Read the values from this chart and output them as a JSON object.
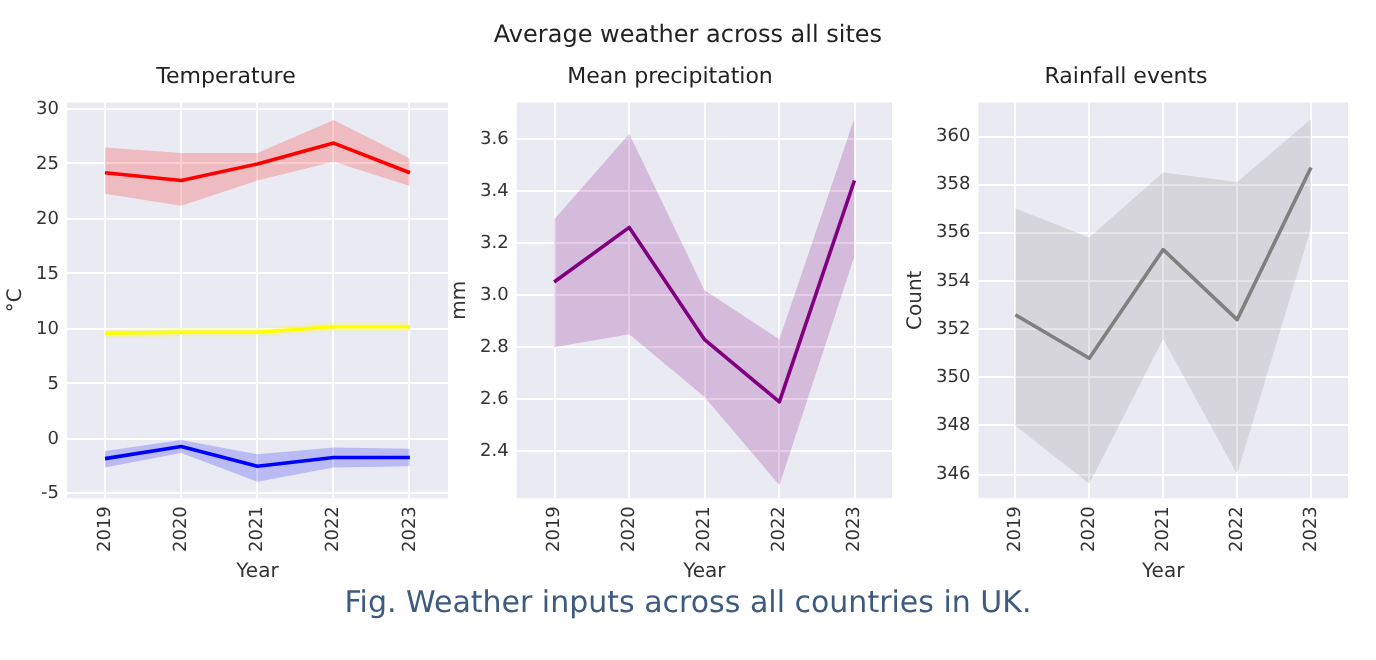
{
  "chart_data": [
    {
      "type": "line",
      "title": "Temperature",
      "xlabel": "Year",
      "ylabel": "°C",
      "categories": [
        "2019",
        "2020",
        "2021",
        "2022",
        "2023"
      ],
      "ylim": [
        -5.4,
        30.6
      ],
      "yticks": [
        -5,
        0,
        5,
        10,
        15,
        20,
        25,
        30
      ],
      "grid": true,
      "legend": false,
      "marker": "none",
      "line_style": "solid",
      "annotations": [
        "Average weather across all sites",
        "Fig. Weather inputs across all countries in UK."
      ],
      "series": [
        {
          "color": "#ff0000",
          "values": [
            24.2,
            23.5,
            25.0,
            26.9,
            24.2
          ],
          "lower": [
            22.3,
            21.2,
            23.5,
            25.2,
            23.0
          ],
          "upper": [
            26.5,
            26.0,
            26.0,
            29.0,
            25.5
          ]
        },
        {
          "color": "#ffff00",
          "values": [
            9.6,
            9.7,
            9.7,
            10.2,
            10.2
          ],
          "lower": [
            9.2,
            9.3,
            9.3,
            9.8,
            9.8
          ],
          "upper": [
            10.0,
            10.1,
            10.1,
            10.6,
            10.6
          ]
        },
        {
          "color": "#0000ff",
          "values": [
            -1.8,
            -0.7,
            -2.5,
            -1.7,
            -1.7
          ],
          "lower": [
            -2.6,
            -1.3,
            -3.9,
            -2.6,
            -2.5
          ],
          "upper": [
            -1.1,
            -0.1,
            -1.4,
            -0.8,
            -0.9
          ]
        }
      ]
    },
    {
      "type": "line",
      "title": "Mean precipitation",
      "xlabel": "Year",
      "ylabel": "mm",
      "categories": [
        "2019",
        "2020",
        "2021",
        "2022",
        "2023"
      ],
      "ylim": [
        2.22,
        3.74
      ],
      "yticks": [
        {
          "value": 2.4,
          "label": "2.4"
        },
        {
          "value": 2.6,
          "label": "2.6"
        },
        {
          "value": 2.8,
          "label": "2.8"
        },
        {
          "value": 3.0,
          "label": "3.0"
        },
        {
          "value": 3.2,
          "label": "3.2"
        },
        {
          "value": 3.4,
          "label": "3.4"
        },
        {
          "value": 3.6,
          "label": "3.6"
        }
      ],
      "grid": true,
      "legend": false,
      "marker": "none",
      "line_style": "solid",
      "series": [
        {
          "color": "#800080",
          "values": [
            3.05,
            3.26,
            2.83,
            2.59,
            3.44
          ],
          "lower": [
            2.8,
            2.85,
            2.61,
            2.27,
            3.15
          ],
          "upper": [
            3.29,
            3.62,
            3.02,
            2.83,
            3.68
          ]
        }
      ]
    },
    {
      "type": "line",
      "title": "Rainfall events",
      "xlabel": "Year",
      "ylabel": "Count",
      "categories": [
        "2019",
        "2020",
        "2021",
        "2022",
        "2023"
      ],
      "ylim": [
        345.0,
        361.4
      ],
      "yticks": [
        346,
        348,
        350,
        352,
        354,
        356,
        358,
        360
      ],
      "grid": true,
      "legend": false,
      "marker": "none",
      "line_style": "solid",
      "series": [
        {
          "color": "#808080",
          "values": [
            352.6,
            350.8,
            355.3,
            352.4,
            358.7
          ],
          "lower": [
            348.0,
            345.6,
            351.6,
            346.0,
            356.2
          ],
          "upper": [
            357.0,
            355.8,
            358.5,
            358.1,
            360.7
          ]
        }
      ]
    }
  ]
}
